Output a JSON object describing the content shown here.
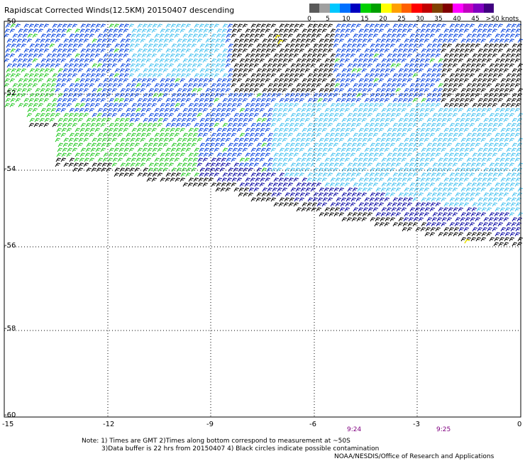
{
  "title": "Rapidscat Corrected Winds(12.5KM) 20150407 descending",
  "legend": {
    "ticks": [
      "0",
      "5",
      "10",
      "15",
      "20",
      "25",
      "30",
      "35",
      "40",
      "45",
      ">50 knots"
    ],
    "colors": [
      "#5a5a5a",
      "#a0a0a0",
      "#00c8ff",
      "#0070ff",
      "#0000c0",
      "#00d000",
      "#00a000",
      "#ffff00",
      "#ffa000",
      "#ff6000",
      "#ff0000",
      "#c00000",
      "#804000",
      "#800000",
      "#ff00ff",
      "#c000c0",
      "#8000c0",
      "#400080"
    ]
  },
  "axes": {
    "lat_labels": [
      "-50",
      "-52",
      "-54",
      "-56",
      "-58",
      "-60"
    ],
    "lon_labels": [
      "-15",
      "-12",
      "-9",
      "-6",
      "-3",
      "0"
    ],
    "grid": true
  },
  "times": [
    "9:24",
    "9:25"
  ],
  "notes": {
    "line1": "Note: 1) Times are GMT 2)Times along bottom correspond to measurement at ~50S",
    "line2": "3)Data buffer is 22 hrs from 20150407 4) Black circles indicate possible contamination",
    "line3": "NOAA/NESDIS/Office of Research and Applications"
  },
  "wind_colors": {
    "black": "#000000",
    "lightblue": "#40c0f0",
    "blue": "#0040e0",
    "darkblue": "#0000a0",
    "green": "#20c820",
    "yellow": "#e8e000"
  }
}
